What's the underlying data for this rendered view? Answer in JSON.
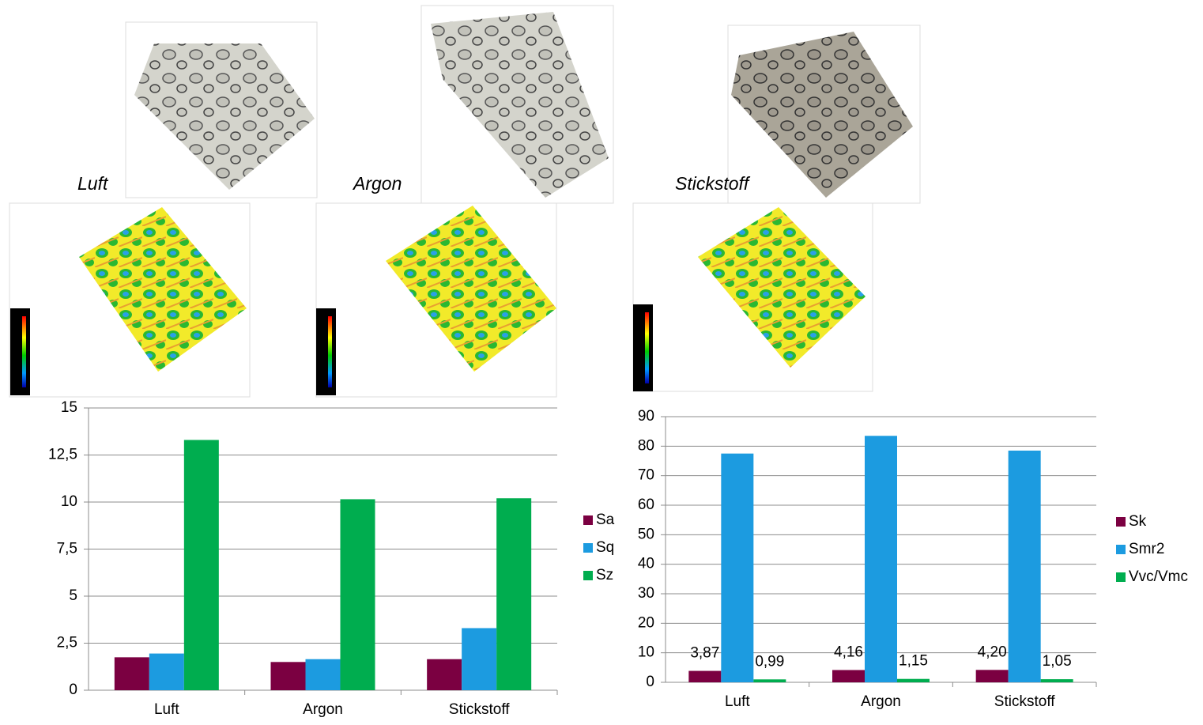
{
  "image_labels": [
    "Luft",
    "Argon",
    "Stickstoff"
  ],
  "chart_data": [
    {
      "type": "bar",
      "categories": [
        "Luft",
        "Argon",
        "Stickstoff"
      ],
      "series": [
        {
          "name": "Sa",
          "color": "#7b0041",
          "values": [
            1.75,
            1.5,
            1.65
          ]
        },
        {
          "name": "Sq",
          "color": "#1c9be0",
          "values": [
            1.95,
            1.65,
            3.3
          ]
        },
        {
          "name": "Sz",
          "color": "#00ad4f",
          "values": [
            13.3,
            10.15,
            10.2
          ]
        }
      ],
      "ylim": [
        0,
        15
      ],
      "yticks": [
        0,
        {
          "value": 2.5,
          "label": "2,5"
        },
        5,
        {
          "value": 7.5,
          "label": "7,5"
        },
        10,
        {
          "value": 12.5,
          "label": "12,5"
        },
        15
      ],
      "grid": true,
      "legend": "right"
    },
    {
      "type": "bar",
      "categories": [
        "Luft",
        "Argon",
        "Stickstoff"
      ],
      "series": [
        {
          "name": "Sk",
          "color": "#7b0041",
          "values": [
            3.87,
            4.16,
            4.2
          ],
          "value_labels": [
            "3,87",
            "4,16",
            "4,20"
          ]
        },
        {
          "name": "Smr2",
          "color": "#1c9be0",
          "values": [
            77.5,
            83.5,
            78.5
          ]
        },
        {
          "name": "Vvc/Vmc",
          "color": "#00ad4f",
          "values": [
            0.99,
            1.15,
            1.05
          ],
          "value_labels": [
            "0,99",
            "1,15",
            "1,05"
          ]
        }
      ],
      "ylim": [
        0,
        90
      ],
      "yticks": [
        0,
        10,
        20,
        30,
        40,
        50,
        60,
        70,
        80,
        90
      ],
      "grid": true,
      "legend": "right"
    }
  ]
}
